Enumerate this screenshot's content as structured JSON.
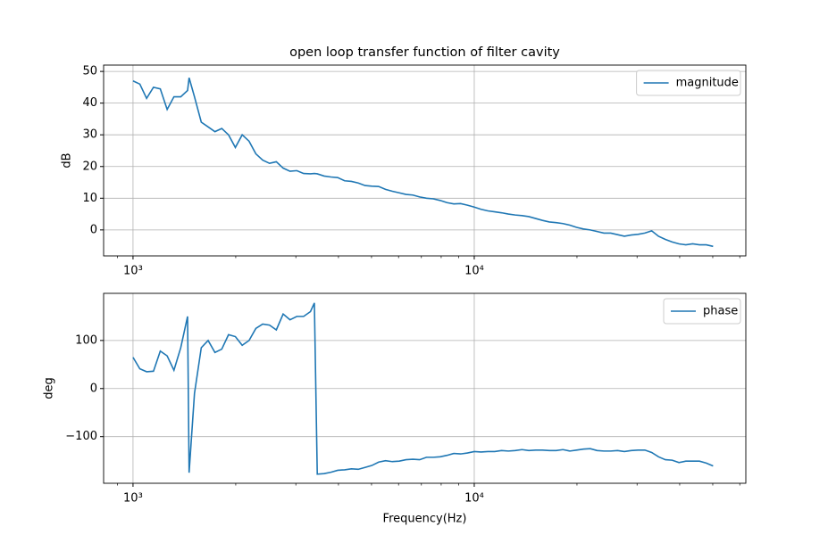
{
  "chart_data": [
    {
      "type": "line",
      "title": "open loop transfer function of filter cavity",
      "ylabel": "dB",
      "log_x": true,
      "grid": true,
      "legend": "upper right",
      "x": [
        1000,
        1047,
        1096,
        1148,
        1202,
        1259,
        1318,
        1380,
        1445,
        1460,
        1514,
        1585,
        1660,
        1738,
        1820,
        1905,
        1995,
        2089,
        2188,
        2291,
        2399,
        2512,
        2630,
        2754,
        2884,
        3020,
        3162,
        3311,
        3400,
        3467,
        3631,
        3802,
        3981,
        4169,
        4365,
        4571,
        4786,
        5012,
        5248,
        5495,
        5754,
        6026,
        6310,
        6607,
        6918,
        7244,
        7586,
        7943,
        8318,
        8710,
        9120,
        9550,
        10000,
        10471,
        10965,
        11482,
        12023,
        12589,
        13183,
        13804,
        14454,
        15136,
        15849,
        16596,
        17378,
        18197,
        19055,
        19953,
        20893,
        21878,
        22909,
        23988,
        25119,
        26303,
        27542,
        28840,
        30200,
        31623,
        33113,
        34674,
        36308,
        38019,
        39811,
        41687,
        43652,
        45709,
        47863,
        50119
      ],
      "series": [
        {
          "name": "magnitude",
          "color": "#1f77b4",
          "values": [
            47,
            46,
            41.5,
            45,
            44.5,
            38,
            42,
            42,
            44,
            48,
            42,
            34,
            32.5,
            31,
            32,
            30,
            26,
            30,
            28,
            24,
            22,
            21,
            21.5,
            19.5,
            18.5,
            18.7,
            17.8,
            17.7,
            17.8,
            17.7,
            17,
            16.7,
            16.5,
            15.5,
            15.3,
            14.8,
            14,
            13.8,
            13.7,
            12.8,
            12.2,
            11.7,
            11.2,
            11,
            10.4,
            10,
            9.8,
            9.3,
            8.6,
            8.2,
            8.3,
            7.8,
            7.2,
            6.5,
            6,
            5.7,
            5.4,
            5,
            4.7,
            4.5,
            4.2,
            3.6,
            3,
            2.5,
            2.3,
            2,
            1.5,
            0.8,
            0.3,
            0,
            -0.5,
            -1,
            -1,
            -1.5,
            -2,
            -1.6,
            -1.4,
            -1,
            -0.3,
            -2,
            -3,
            -3.8,
            -4.4,
            -4.7,
            -4.4,
            -4.7,
            -4.7,
            -5.2
          ]
        }
      ],
      "xlim": [
        820,
        62500
      ],
      "xticks": [
        {
          "value": 1000,
          "label": "10³"
        },
        {
          "value": 10000,
          "label": "10⁴"
        }
      ],
      "xminorticks": [
        900,
        2000,
        3000,
        4000,
        5000,
        6000,
        7000,
        8000,
        9000,
        20000,
        30000,
        40000,
        50000,
        60000
      ],
      "ylim": [
        -8.2,
        52
      ],
      "yticks": [
        0,
        10,
        20,
        30,
        40,
        50
      ]
    },
    {
      "type": "line",
      "xlabel": "Frequency(Hz)",
      "ylabel": "deg",
      "log_x": true,
      "grid": true,
      "legend": "upper right",
      "x": [
        1000,
        1047,
        1096,
        1148,
        1202,
        1259,
        1318,
        1380,
        1445,
        1460,
        1514,
        1585,
        1660,
        1738,
        1820,
        1905,
        1995,
        2089,
        2188,
        2291,
        2399,
        2512,
        2630,
        2754,
        2884,
        3020,
        3162,
        3311,
        3400,
        3467,
        3631,
        3802,
        3981,
        4169,
        4365,
        4571,
        4786,
        5012,
        5248,
        5495,
        5754,
        6026,
        6310,
        6607,
        6918,
        7244,
        7586,
        7943,
        8318,
        8710,
        9120,
        9550,
        10000,
        10471,
        10965,
        11482,
        12023,
        12589,
        13183,
        13804,
        14454,
        15136,
        15849,
        16596,
        17378,
        18197,
        19055,
        19953,
        20893,
        21878,
        22909,
        23988,
        25119,
        26303,
        27542,
        28840,
        30200,
        31623,
        33113,
        34674,
        36308,
        38019,
        39811,
        41687,
        43652,
        45709,
        47863,
        50119
      ],
      "series": [
        {
          "name": "phase",
          "color": "#1f77b4",
          "values": [
            65,
            41,
            35,
            36,
            78,
            68,
            38,
            85,
            150,
            -175,
            -10,
            85,
            100,
            75,
            82,
            112,
            108,
            90,
            100,
            125,
            134,
            132,
            122,
            155,
            143,
            150,
            150,
            160,
            178,
            -178,
            -177,
            -174,
            -170,
            -169,
            -167,
            -168,
            -164,
            -160,
            -153,
            -150,
            -152,
            -151,
            -148,
            -147,
            -148,
            -143,
            -143,
            -142,
            -139,
            -135,
            -136,
            -134,
            -131,
            -132,
            -131,
            -131,
            -129,
            -130,
            -129,
            -127,
            -129,
            -128,
            -128,
            -129,
            -129,
            -127,
            -130,
            -128,
            -126,
            -125,
            -129,
            -130,
            -130,
            -129,
            -131,
            -129,
            -128,
            -128,
            -133,
            -142,
            -148,
            -149,
            -154,
            -151,
            -151,
            -151,
            -155,
            -161
          ]
        }
      ],
      "xlim": [
        820,
        62500
      ],
      "xticks": [
        {
          "value": 1000,
          "label": "10³"
        },
        {
          "value": 10000,
          "label": "10⁴"
        }
      ],
      "xminorticks": [
        900,
        2000,
        3000,
        4000,
        5000,
        6000,
        7000,
        8000,
        9000,
        20000,
        30000,
        40000,
        50000,
        60000
      ],
      "ylim": [
        -197,
        198
      ],
      "yticks": [
        {
          "value": -100,
          "label": "−100"
        },
        0,
        100
      ]
    }
  ]
}
